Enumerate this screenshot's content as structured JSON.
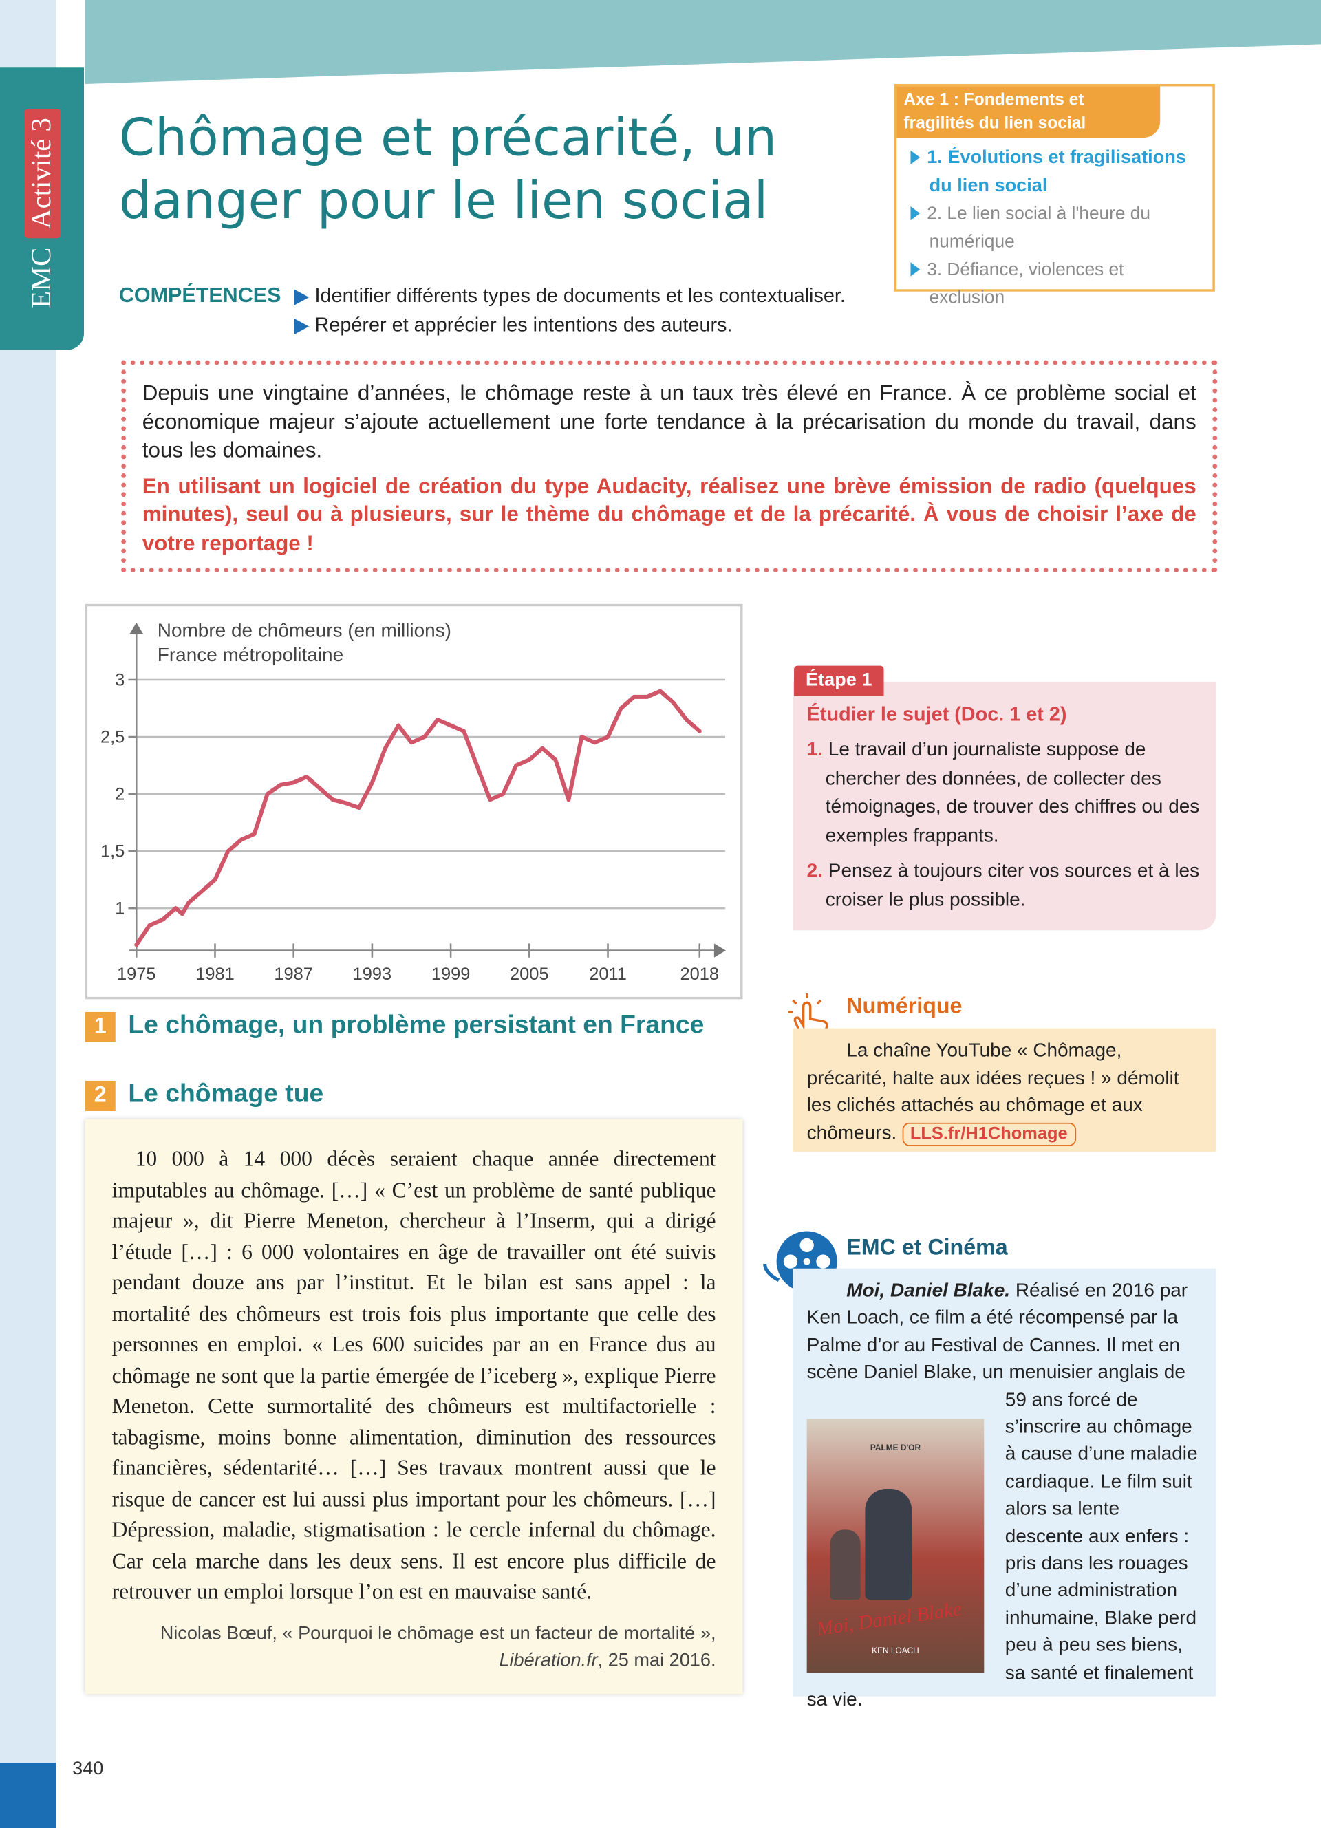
{
  "sidebar": {
    "subject": "EMC",
    "activity": "Activité 3"
  },
  "header": {
    "title": "Chômage et précarité, un danger pour le lien social"
  },
  "axis_box": {
    "title": "Axe 1 : Fondements et fragilités du lien social",
    "items": [
      "1. Évolutions et fragilisations du lien social",
      "2. Le lien social à l'heure du numérique",
      "3. Défiance, violences et exclusion"
    ]
  },
  "skills": {
    "label": "COMPÉTENCES",
    "items": [
      "Identifier différents types de documents et les contextualiser.",
      "Repérer et apprécier les intentions des auteurs."
    ]
  },
  "intro": {
    "text": "Depuis une vingtaine d’années, le chômage reste à un taux très élevé en France. À ce problème social et économique majeur s’ajoute actuellement une forte tendance à la précarisation du monde du travail, dans tous les domaines.",
    "task": "En utilisant un logiciel de création du type Audacity, réalisez une brève émission de radio (quelques minutes), seul ou à plusieurs, sur le thème du chômage et de la précarité. À vous de choisir l’axe de votre reportage !"
  },
  "chart_data": {
    "type": "line",
    "title": "Nombre de chômeurs (en millions)",
    "subtitle": "France métropolitaine",
    "color": "#d0566a",
    "grid": true,
    "x": [
      1975,
      1976,
      1977,
      1978,
      1978.5,
      1979,
      1980,
      1981,
      1982,
      1983,
      1984,
      1985,
      1986,
      1987,
      1988,
      1989,
      1990,
      1991,
      1992,
      1993,
      1994,
      1995,
      1996,
      1997,
      1998,
      1999,
      2000,
      2001,
      2002,
      2003,
      2004,
      2005,
      2006,
      2007,
      2008,
      2009,
      2010,
      2011,
      2012,
      2013,
      2014,
      2015,
      2016,
      2017,
      2018
    ],
    "values": [
      0.68,
      0.85,
      0.9,
      1.0,
      0.95,
      1.05,
      1.15,
      1.25,
      1.5,
      1.6,
      1.65,
      2.0,
      2.08,
      2.1,
      2.15,
      2.05,
      1.95,
      1.92,
      1.88,
      2.1,
      2.4,
      2.6,
      2.45,
      2.5,
      2.65,
      2.6,
      2.55,
      2.25,
      1.95,
      2.0,
      2.25,
      2.3,
      2.4,
      2.3,
      1.95,
      2.5,
      2.45,
      2.5,
      2.75,
      2.85,
      2.85,
      2.9,
      2.8,
      2.65,
      2.55
    ],
    "xlim": [
      1975,
      2020
    ],
    "ylim": [
      0.63,
      3.5
    ],
    "xticks": [
      1975,
      1981,
      1987,
      1993,
      1999,
      2005,
      2011,
      2018
    ],
    "yticks": [
      1,
      {
        "value": 1.5,
        "label": "1,5"
      },
      2,
      {
        "value": 2.5,
        "label": "2,5"
      },
      3
    ]
  },
  "documents": [
    {
      "number": "1",
      "title": "Le chômage, un problème persistant en France"
    },
    {
      "number": "2",
      "title": "Le chômage tue",
      "text": "10 000 à 14 000 décès seraient chaque année directement imputables au chômage. […] « C’est un problème de santé publique majeur », dit Pierre Meneton, chercheur à l’Inserm, qui a dirigé l’étude […] : 6 000 volontaires en âge de travailler ont été suivis pendant douze ans par l’institut. Et le bilan est sans appel : la mortalité des chômeurs est trois fois plus importante que celle des personnes en emploi. « Les 600 suicides par an en France dus au chômage ne sont que la partie émergée de l’iceberg », explique Pierre Meneton. Cette surmortalité des chômeurs est multifactorielle : tabagisme, moins bonne alimentation, diminution des ressources financières, sédentarité… […] Ses travaux montrent aussi que le risque de cancer est lui aussi plus important pour les chômeurs. […] Dépression, maladie, stigmatisation : le cercle infernal du chômage. Car cela marche dans les deux sens. Il est encore plus difficile de retrouver un emploi lorsque l’on est en mauvaise santé.",
      "source": {
        "author_title": "Nicolas Bœuf, « Pourquoi le chômage est un facteur de mortalité »,",
        "site": "Libération.fr",
        "date": ", 25 mai 2016."
      }
    }
  ],
  "step": {
    "tab": "Étape 1",
    "subtitle": "Étudier le sujet (Doc. 1 et 2)",
    "items": [
      {
        "number": "1.",
        "text": "Le travail d’un journaliste suppose de chercher des données, de collecter des témoignages, de trouver des chiffres ou des exemples frappants."
      },
      {
        "number": "2.",
        "text": "Pensez à toujours citer vos sources et à les croiser le plus possible."
      }
    ]
  },
  "digital": {
    "heading": "Numérique",
    "text": "La chaîne YouTube « Chômage, précarité, halte aux idées reçues ! » démolit les clichés attachés au chômage et aux chômeurs.",
    "link": "LLS.fr/H1Chomage"
  },
  "cinema": {
    "heading": "EMC et Cinéma",
    "film_title": "Moi, Daniel Blake.",
    "text": "Réalisé en 2016 par Ken Loach, ce film a été récompensé par la Palme d’or au Festival de Cannes. Il met en scène Daniel Blake, un menuisier anglais de 59 ans forcé de s’inscrire au chômage à cause d’une maladie cardiaque. Le film suit alors sa lente descente aux enfers : pris dans les rouages d’une administration inhumaine, Blake perd peu à peu ses biens, sa santé et finalement sa vie.",
    "poster": {
      "award": "PALME D'OR",
      "title": "Moi, Daniel Blake",
      "director": "KEN LOACH"
    }
  },
  "page_number": "340"
}
